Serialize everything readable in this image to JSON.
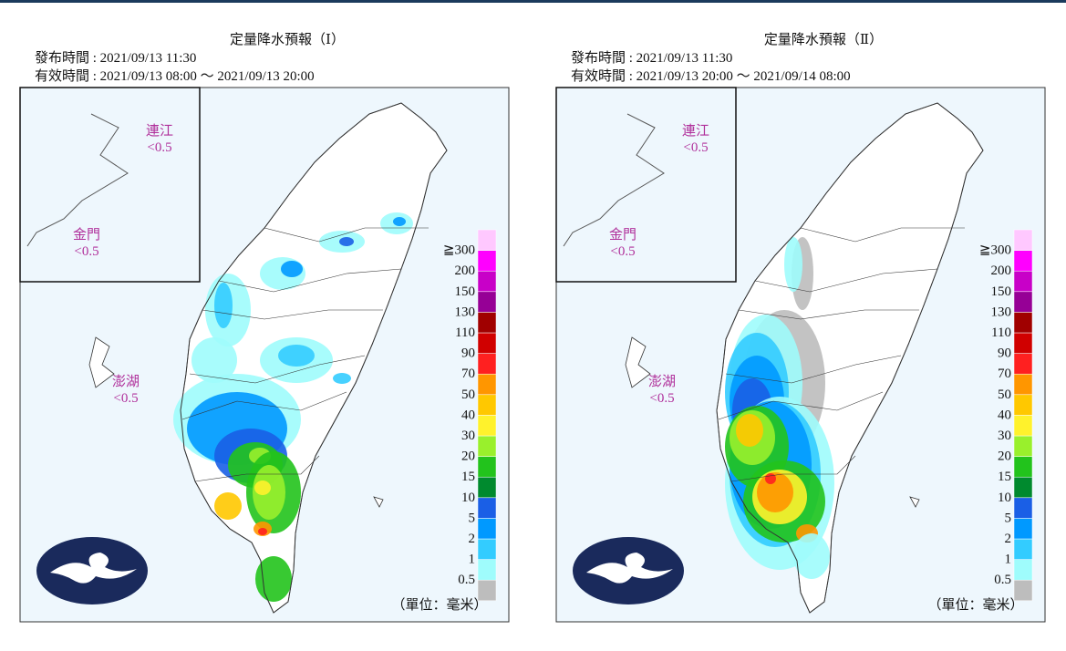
{
  "panels": [
    {
      "title": "定量降水預報（Ⅰ）",
      "issued": "發布時間 : 2021/09/13 11:30",
      "valid": "有效時間 : 2021/09/13 08:00 ～ 2021/09/13 20:00",
      "islands": [
        {
          "name": "連江",
          "value": "<0.5"
        },
        {
          "name": "金門",
          "value": "<0.5"
        },
        {
          "name": "澎湖",
          "value": "<0.5"
        }
      ],
      "unit": "（單位：毫米）"
    },
    {
      "title": "定量降水預報（Ⅱ）",
      "issued": "發布時間 : 2021/09/13 11:30",
      "valid": "有效時間 : 2021/09/13 20:00 ～ 2021/09/14 08:00",
      "islands": [
        {
          "name": "連江",
          "value": "<0.5"
        },
        {
          "name": "金門",
          "value": "<0.5"
        },
        {
          "name": "澎湖",
          "value": "<0.5"
        }
      ],
      "unit": "（單位：毫米）"
    }
  ],
  "legend": {
    "labels": [
      "0.5",
      "1",
      "2",
      "5",
      "10",
      "15",
      "20",
      "30",
      "40",
      "50",
      "70",
      "90",
      "110",
      "130",
      "150",
      "200",
      "≧300"
    ],
    "colors": [
      "#bdbdbd",
      "#9ffcfc",
      "#33ccff",
      "#0099ff",
      "#1a5fe6",
      "#008a2e",
      "#22c31c",
      "#99f02c",
      "#fff22c",
      "#ffc800",
      "#ff9600",
      "#ff2020",
      "#d00000",
      "#a00000",
      "#960096",
      "#c800c8",
      "#ff00ff",
      "#ffc8ff"
    ]
  }
}
